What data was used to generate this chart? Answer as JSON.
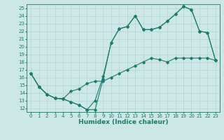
{
  "xlabel": "Humidex (Indice chaleur)",
  "xlim": [
    -0.5,
    23.5
  ],
  "ylim": [
    11.5,
    25.5
  ],
  "xticks": [
    0,
    1,
    2,
    3,
    4,
    5,
    6,
    7,
    8,
    9,
    10,
    11,
    12,
    13,
    14,
    15,
    16,
    17,
    18,
    19,
    20,
    21,
    22,
    23
  ],
  "yticks": [
    12,
    13,
    14,
    15,
    16,
    17,
    18,
    19,
    20,
    21,
    22,
    23,
    24,
    25
  ],
  "line_color": "#1a7a6e",
  "bg_color": "#cde8e4",
  "grid_color": "#aacfcb",
  "line1_x": [
    0,
    1,
    2,
    3,
    4,
    5,
    6,
    7,
    8,
    9,
    10,
    11,
    12,
    13,
    14,
    15,
    16,
    17,
    18,
    19,
    20,
    21,
    22,
    23
  ],
  "line1_y": [
    16.5,
    14.8,
    13.8,
    13.3,
    13.2,
    12.8,
    12.4,
    11.8,
    11.8,
    15.8,
    20.5,
    22.3,
    22.6,
    24.0,
    22.2,
    22.2,
    22.5,
    23.3,
    24.2,
    25.2,
    24.8,
    22.0,
    21.8,
    18.2
  ],
  "line2_x": [
    0,
    1,
    2,
    3,
    4,
    5,
    6,
    7,
    8,
    9,
    10,
    11,
    12,
    13,
    14,
    15,
    16,
    17,
    18,
    19,
    20,
    21,
    22,
    23
  ],
  "line2_y": [
    16.5,
    14.8,
    13.8,
    13.3,
    13.2,
    12.8,
    12.4,
    11.8,
    13.0,
    16.1,
    20.5,
    22.3,
    22.6,
    24.0,
    22.2,
    22.2,
    22.5,
    23.3,
    24.2,
    25.2,
    24.8,
    22.0,
    21.8,
    18.2
  ],
  "line3_x": [
    0,
    1,
    2,
    3,
    4,
    5,
    6,
    7,
    8,
    9,
    10,
    11,
    12,
    13,
    14,
    15,
    16,
    17,
    18,
    19,
    20,
    21,
    22,
    23
  ],
  "line3_y": [
    16.5,
    14.8,
    13.8,
    13.3,
    13.2,
    14.2,
    14.5,
    15.2,
    15.5,
    15.5,
    16.0,
    16.5,
    17.0,
    17.5,
    18.0,
    18.5,
    18.3,
    18.0,
    18.5,
    18.5,
    18.5,
    18.5,
    18.5,
    18.2
  ],
  "marker": "D",
  "markersize": 1.8,
  "linewidth": 0.8,
  "tick_fontsize": 5.0,
  "label_fontsize": 6.5
}
